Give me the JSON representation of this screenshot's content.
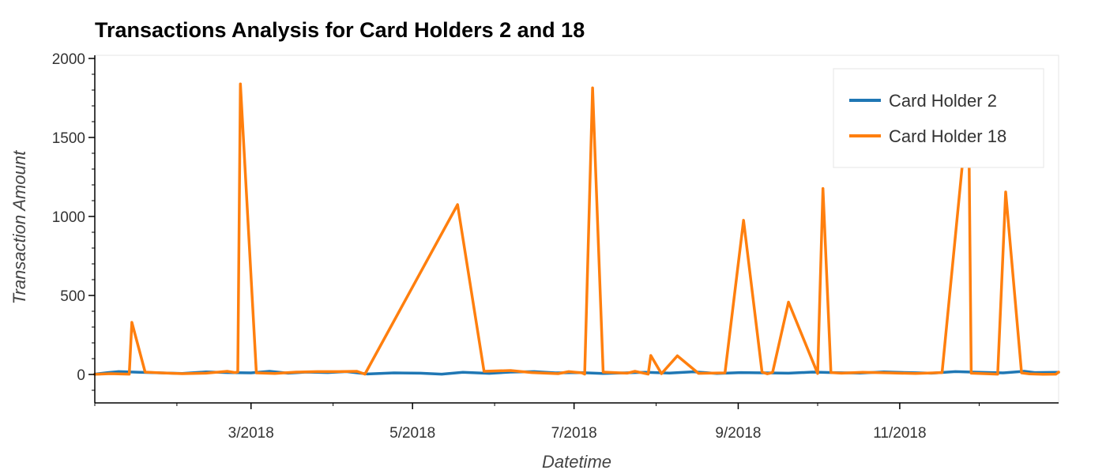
{
  "chart_data": {
    "type": "line",
    "title": "Transactions Analysis for Card Holders 2 and 18",
    "xlabel": "Datetime",
    "ylabel": "Transaction Amount",
    "xlim": [
      "2018-01-01",
      "2018-12-31"
    ],
    "ylim": [
      -180,
      2020
    ],
    "x_ticks": [
      "2018-03-01",
      "2018-05-01",
      "2018-07-01",
      "2018-09-01",
      "2018-11-01"
    ],
    "x_tick_labels": [
      "3/2018",
      "5/2018",
      "7/2018",
      "9/2018",
      "11/2018"
    ],
    "y_ticks": [
      0,
      500,
      1000,
      1500,
      2000
    ],
    "y_tick_labels": [
      "0",
      "500",
      "1000",
      "1500",
      "2000"
    ],
    "grid": false,
    "legend_position": "top-right",
    "series": [
      {
        "name": "Card Holder 2",
        "color": "#1f77b4",
        "x": [
          "2018-01-01",
          "2018-01-06",
          "2018-01-10",
          "2018-01-18",
          "2018-01-26",
          "2018-02-03",
          "2018-02-12",
          "2018-02-20",
          "2018-03-01",
          "2018-03-08",
          "2018-03-15",
          "2018-03-22",
          "2018-03-30",
          "2018-04-06",
          "2018-04-14",
          "2018-04-24",
          "2018-05-04",
          "2018-05-12",
          "2018-05-20",
          "2018-05-30",
          "2018-06-07",
          "2018-06-16",
          "2018-06-24",
          "2018-07-03",
          "2018-07-12",
          "2018-07-20",
          "2018-07-28",
          "2018-08-06",
          "2018-08-15",
          "2018-08-24",
          "2018-09-02",
          "2018-09-11",
          "2018-09-20",
          "2018-09-29",
          "2018-10-08",
          "2018-10-17",
          "2018-10-26",
          "2018-11-04",
          "2018-11-13",
          "2018-11-22",
          "2018-12-01",
          "2018-12-10",
          "2018-12-18",
          "2018-12-22",
          "2018-12-31"
        ],
        "values": [
          2,
          12,
          18,
          14,
          10,
          6,
          16,
          12,
          10,
          20,
          8,
          15,
          12,
          18,
          3,
          10,
          8,
          2,
          14,
          7,
          15,
          18,
          10,
          12,
          6,
          10,
          14,
          9,
          17,
          6,
          12,
          10,
          8,
          15,
          11,
          9,
          16,
          12,
          8,
          18,
          14,
          10,
          20,
          12,
          14
        ]
      },
      {
        "name": "Card Holder 18",
        "color": "#ff7f0e",
        "x": [
          "2018-01-01",
          "2018-01-07",
          "2018-01-14",
          "2018-01-15",
          "2018-01-20",
          "2018-01-26",
          "2018-02-03",
          "2018-02-12",
          "2018-02-20",
          "2018-02-23",
          "2018-02-24",
          "2018-02-25",
          "2018-03-03",
          "2018-03-10",
          "2018-03-18",
          "2018-03-26",
          "2018-04-03",
          "2018-04-10",
          "2018-04-13",
          "2018-05-18",
          "2018-05-28",
          "2018-06-07",
          "2018-06-15",
          "2018-06-25",
          "2018-06-29",
          "2018-07-04",
          "2018-07-05",
          "2018-07-08",
          "2018-07-12",
          "2018-07-21",
          "2018-07-24",
          "2018-07-29",
          "2018-07-30",
          "2018-08-03",
          "2018-08-09",
          "2018-08-17",
          "2018-08-27",
          "2018-09-03",
          "2018-09-10",
          "2018-09-12",
          "2018-09-13",
          "2018-09-14",
          "2018-09-20",
          "2018-10-01",
          "2018-10-03",
          "2018-10-06",
          "2018-10-10",
          "2018-10-18",
          "2018-10-28",
          "2018-11-07",
          "2018-11-17",
          "2018-11-27",
          "2018-11-28",
          "2018-12-03",
          "2018-12-08",
          "2018-12-11",
          "2018-12-17",
          "2018-12-20",
          "2018-12-25",
          "2018-12-30",
          "2018-12-31"
        ],
        "values": [
          1,
          5,
          2,
          330,
          15,
          10,
          5,
          8,
          20,
          12,
          16,
          1839,
          10,
          6,
          15,
          18,
          18,
          20,
          2,
          1075,
          20,
          25,
          12,
          5,
          18,
          10,
          2,
          1814,
          15,
          8,
          20,
          2,
          120,
          5,
          118,
          7,
          10,
          976,
          15,
          4,
          8,
          14,
          458,
          6,
          1177,
          12,
          8,
          14,
          10,
          6,
          12,
          1730,
          8,
          5,
          2,
          1155,
          10,
          4,
          1,
          2,
          15
        ]
      }
    ]
  }
}
